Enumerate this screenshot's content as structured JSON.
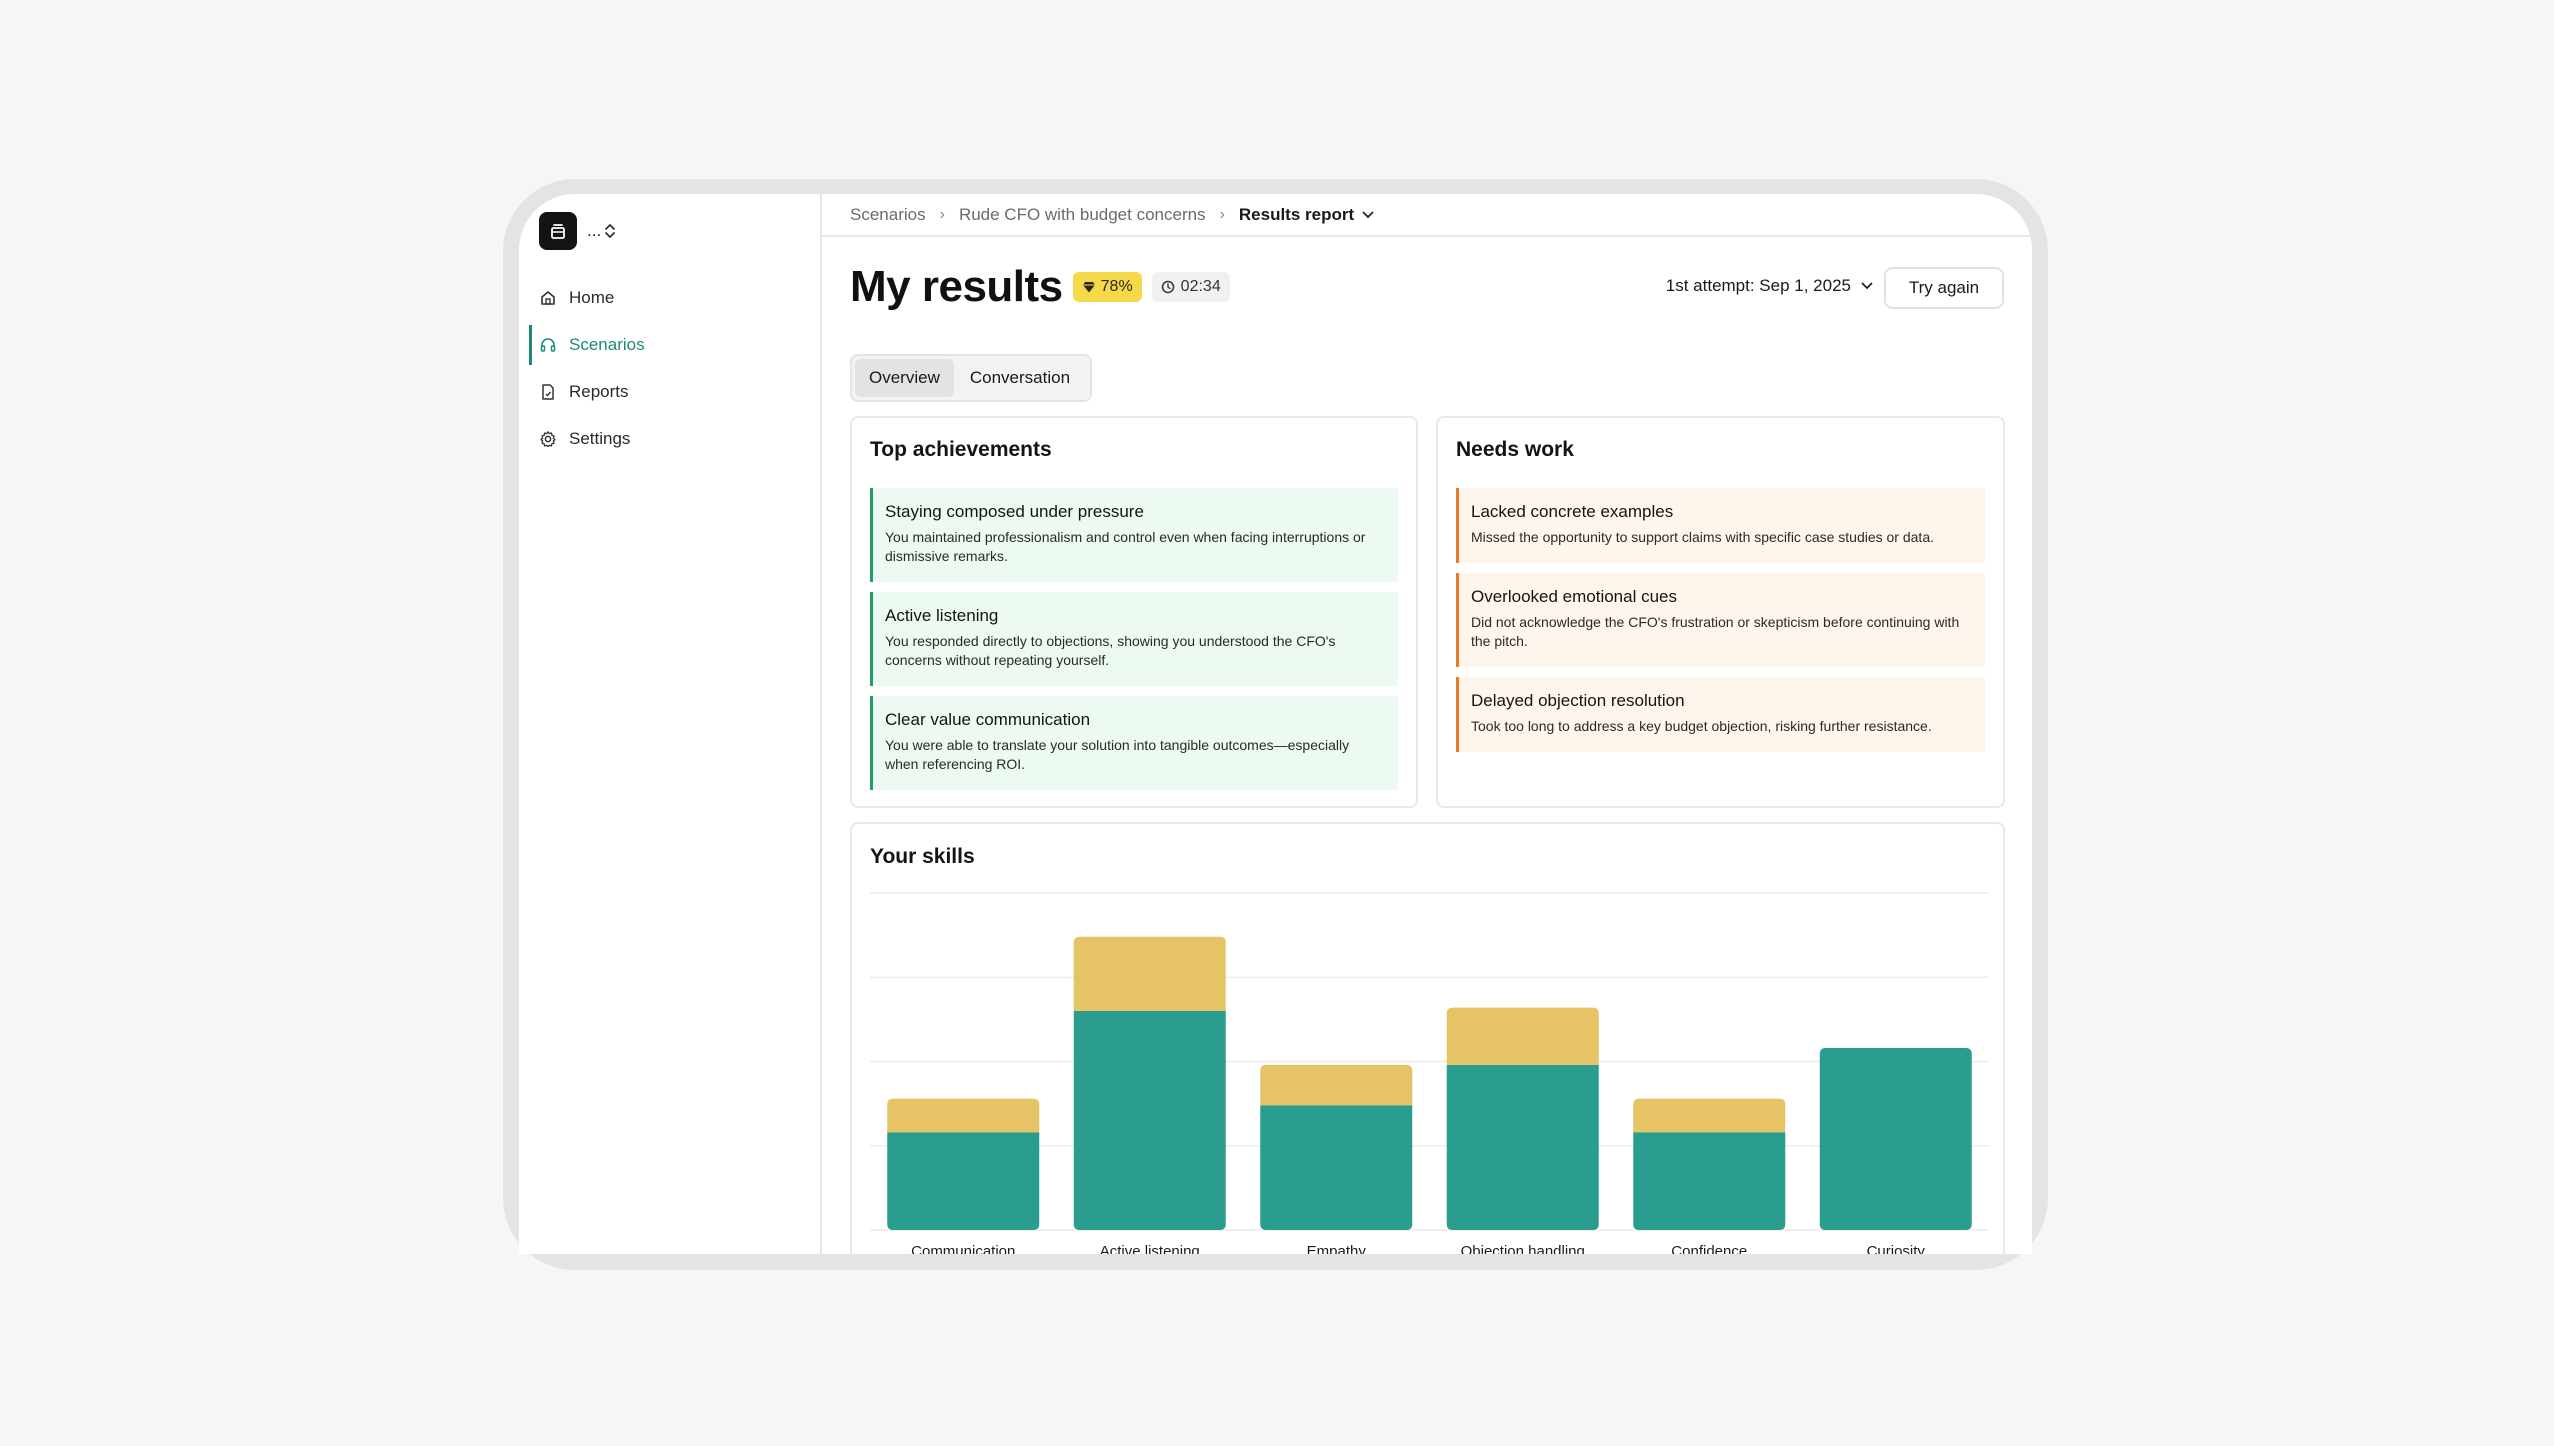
{
  "sidebar": {
    "logo_label": "...",
    "items": [
      {
        "label": "Home",
        "icon": "home-icon"
      },
      {
        "label": "Scenarios",
        "icon": "headset-icon",
        "active": true
      },
      {
        "label": "Reports",
        "icon": "report-icon"
      },
      {
        "label": "Settings",
        "icon": "gear-icon"
      }
    ]
  },
  "breadcrumb": {
    "items": [
      "Scenarios",
      "Rude CFO with budget concerns"
    ],
    "current": "Results report"
  },
  "header": {
    "title": "My results",
    "score": "78%",
    "time": "02:34",
    "attempt": "1st attempt: Sep 1, 2025",
    "try_again": "Try again"
  },
  "tabs": [
    "Overview",
    "Conversation"
  ],
  "achievements": {
    "title": "Top achievements",
    "items": [
      {
        "title": "Staying composed under pressure",
        "desc": "You maintained professionalism and control even when facing interruptions or dismissive remarks."
      },
      {
        "title": "Active listening",
        "desc": "You responded directly to objections, showing you understood the CFO's concerns without repeating yourself."
      },
      {
        "title": "Clear value communication",
        "desc": "You were able to translate your solution into tangible outcomes—especially when referencing ROI."
      }
    ]
  },
  "needs_work": {
    "title": "Needs work",
    "items": [
      {
        "title": "Lacked concrete examples",
        "desc": "Missed the opportunity to support claims with specific case studies or data."
      },
      {
        "title": "Overlooked emotional cues",
        "desc": "Did not acknowledge the CFO's frustration or skepticism before continuing with the pitch."
      },
      {
        "title": "Delayed objection resolution",
        "desc": "Took too long to address a key budget objection, risking further resistance."
      }
    ]
  },
  "skills": {
    "title": "Your skills"
  },
  "colors": {
    "accent": "#1e8a78",
    "bar_base": "#2a9d8f",
    "bar_gain": "#e6c466",
    "good_bg": "#ecfaf1",
    "good_border": "#1e9e62",
    "bad_bg": "#fef6ec",
    "bad_border": "#ea7a2a",
    "score_badge": "#f5d94b"
  },
  "chart_data": {
    "type": "bar",
    "stacked": true,
    "categories": [
      "Communication",
      "Active listening",
      "Empathy",
      "Objection handling",
      "Confidence",
      "Curiosity"
    ],
    "series": [
      {
        "values": [
          29,
          65,
          37,
          49,
          29,
          54
        ]
      },
      {
        "values": [
          10,
          22,
          12,
          17,
          10,
          0
        ]
      }
    ],
    "ylim": [
      0,
      100
    ],
    "grid": true,
    "title": "",
    "xlabel": "",
    "ylabel": ""
  }
}
